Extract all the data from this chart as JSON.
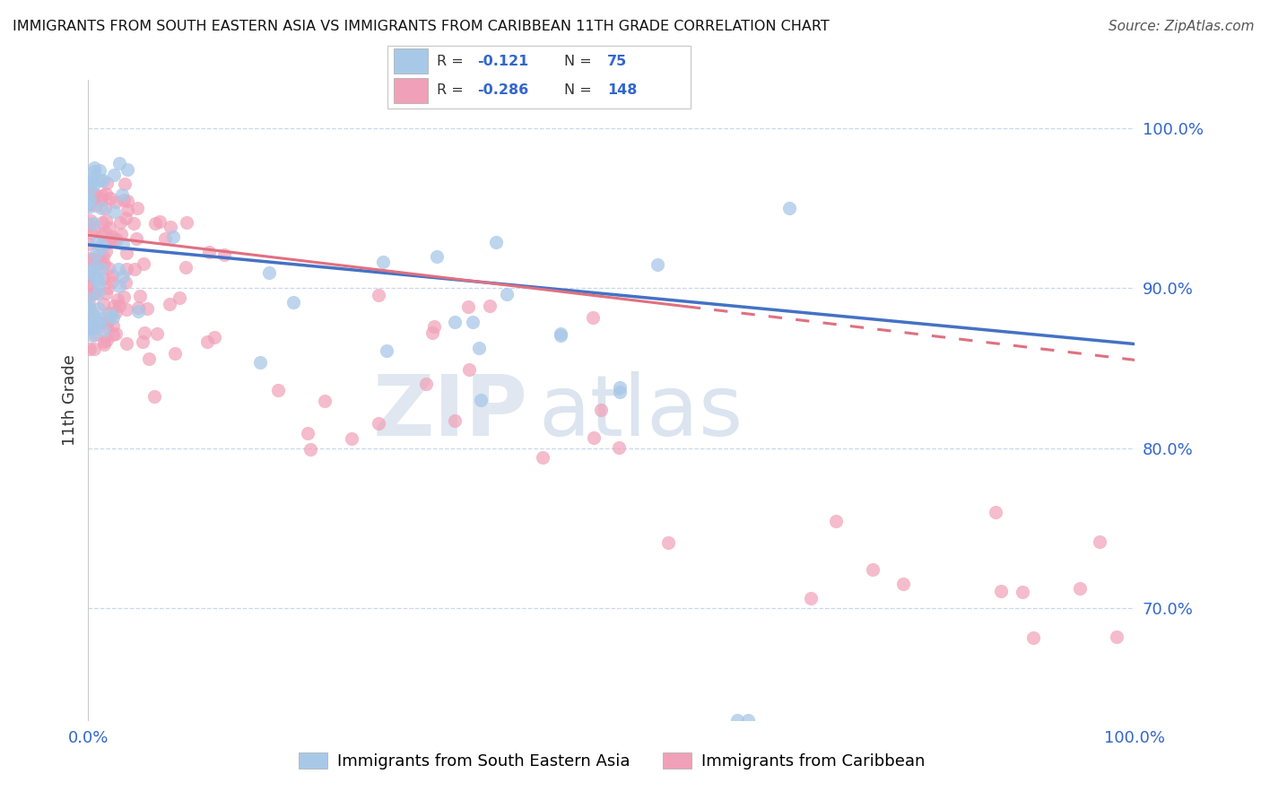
{
  "title": "IMMIGRANTS FROM SOUTH EASTERN ASIA VS IMMIGRANTS FROM CARIBBEAN 11TH GRADE CORRELATION CHART",
  "source": "Source: ZipAtlas.com",
  "ylabel": "11th Grade",
  "legend_label1": "Immigrants from South Eastern Asia",
  "legend_label2": "Immigrants from Caribbean",
  "blue_color": "#A8C8E8",
  "pink_color": "#F0A0B8",
  "trendline_blue": "#4472C4",
  "trendline_pink": "#E07080",
  "xlim": [
    0.0,
    1.0
  ],
  "ylim": [
    0.63,
    1.03
  ],
  "yticks": [
    0.7,
    0.8,
    0.9,
    1.0
  ],
  "ytick_labels": [
    "70.0%",
    "80.0%",
    "90.0%",
    "100.0%"
  ],
  "grid_color": "#C8D8EC",
  "title_fontsize": 11.5,
  "axis_fontsize": 13,
  "watermark_zip_color": "#C8D8EC",
  "watermark_atlas_color": "#B8CCE4"
}
